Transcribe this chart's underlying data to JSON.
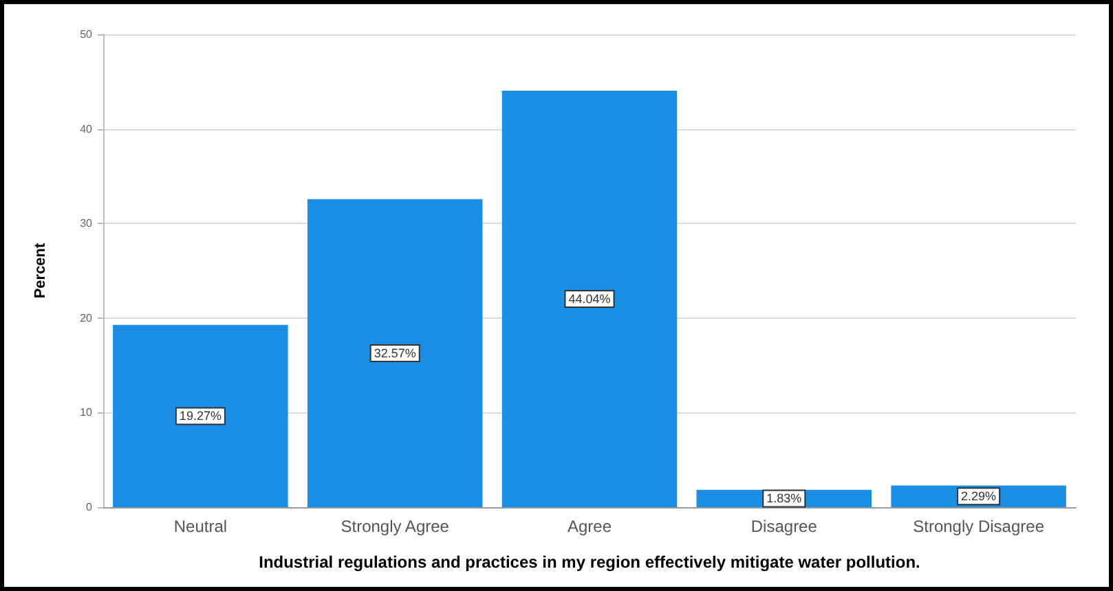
{
  "chart_data": {
    "type": "bar",
    "xlabel": "Industrial regulations and practices in my region effectively mitigate water pollution.",
    "ylabel": "Percent",
    "categories": [
      "Neutral",
      "Strongly Agree",
      "Agree",
      "Disagree",
      "Strongly Disagree"
    ],
    "values": [
      19.27,
      32.57,
      44.04,
      1.83,
      2.29
    ],
    "value_labels": [
      "19.27%",
      "32.57%",
      "44.04%",
      "1.83%",
      "2.29%"
    ],
    "color": "#1b8ee6",
    "ylim": [
      0,
      50
    ],
    "yticks": [
      0,
      10,
      20,
      30,
      40,
      50
    ],
    "grid": "y"
  }
}
